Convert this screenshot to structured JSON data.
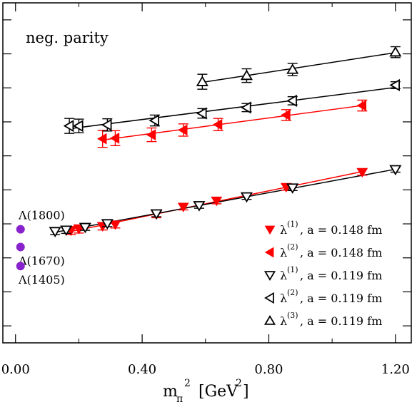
{
  "chart_data": {
    "type": "scatter",
    "title": "",
    "annotation": "neg. parity",
    "xlabel": {
      "main": "m",
      "sub": "π",
      "sup": "2",
      "unit": "[GeV",
      "unit_sup": "2",
      "unit_close": "]"
    },
    "ylabel": "",
    "xlim": [
      -0.04,
      1.25
    ],
    "ylim": [
      0,
      1
    ],
    "x_ticks": [
      0.0,
      0.4,
      0.8,
      1.2
    ],
    "x_tick_labels": [
      "0.00",
      "0.40",
      "0.80",
      "1.20"
    ],
    "y_major_ticks": [
      0.05,
      0.15,
      0.25,
      0.35,
      0.45,
      0.55,
      0.65,
      0.75,
      0.85,
      0.95
    ],
    "grid": false,
    "legend_position": "bottom-right",
    "colors": {
      "red": "#ff0000",
      "black": "#000000",
      "purple": "#8822cc"
    },
    "series": [
      {
        "name": "λ(1), a = 0.148 fm",
        "label_main": "λ",
        "label_sup": "(1)",
        "label_rest": ", a = 0.148 fm",
        "marker": "triangle-down",
        "filled": true,
        "color": "#ff0000",
        "fit_line": true,
        "points": [
          {
            "x": 0.175,
            "y": 0.33,
            "err": 0.012
          },
          {
            "x": 0.2,
            "y": 0.335,
            "err": 0.012
          },
          {
            "x": 0.275,
            "y": 0.343,
            "err": 0.011
          },
          {
            "x": 0.315,
            "y": 0.348,
            "err": 0.01
          },
          {
            "x": 0.445,
            "y": 0.378,
            "err": 0.01
          },
          {
            "x": 0.53,
            "y": 0.4,
            "err": 0.009
          },
          {
            "x": 0.635,
            "y": 0.418,
            "err": 0.009
          },
          {
            "x": 0.855,
            "y": 0.458,
            "err": 0.009
          },
          {
            "x": 1.095,
            "y": 0.502,
            "err": 0.009
          }
        ]
      },
      {
        "name": "λ(2), a = 0.148 fm",
        "label_main": "λ",
        "label_sup": "(2)",
        "label_rest": ", a = 0.148 fm",
        "marker": "triangle-left",
        "filled": true,
        "color": "#ff0000",
        "fit_line": true,
        "points": [
          {
            "x": 0.275,
            "y": 0.6,
            "err": 0.025
          },
          {
            "x": 0.315,
            "y": 0.602,
            "err": 0.022
          },
          {
            "x": 0.43,
            "y": 0.612,
            "err": 0.02
          },
          {
            "x": 0.53,
            "y": 0.626,
            "err": 0.018
          },
          {
            "x": 0.64,
            "y": 0.642,
            "err": 0.018
          },
          {
            "x": 0.855,
            "y": 0.67,
            "err": 0.016
          },
          {
            "x": 1.095,
            "y": 0.698,
            "err": 0.016
          }
        ]
      },
      {
        "name": "λ(1), a = 0.119 fm",
        "label_main": "λ",
        "label_sup": "(1)",
        "label_rest": ", a = 0.119 fm",
        "marker": "triangle-down",
        "filled": false,
        "color": "#000000",
        "fit_line": true,
        "points": [
          {
            "x": 0.125,
            "y": 0.328,
            "err": 0.01
          },
          {
            "x": 0.16,
            "y": 0.332,
            "err": 0.01
          },
          {
            "x": 0.22,
            "y": 0.34,
            "err": 0.009
          },
          {
            "x": 0.29,
            "y": 0.351,
            "err": 0.009
          },
          {
            "x": 0.445,
            "y": 0.38,
            "err": 0.009
          },
          {
            "x": 0.58,
            "y": 0.404,
            "err": 0.008
          },
          {
            "x": 0.73,
            "y": 0.43,
            "err": 0.008
          },
          {
            "x": 0.875,
            "y": 0.456,
            "err": 0.008
          },
          {
            "x": 1.2,
            "y": 0.51,
            "err": 0.008
          }
        ]
      },
      {
        "name": "λ(2), a = 0.119 fm",
        "label_main": "λ",
        "label_sup": "(2)",
        "label_rest": ", a = 0.119 fm",
        "marker": "triangle-left",
        "filled": false,
        "color": "#000000",
        "fit_line": true,
        "points": [
          {
            "x": 0.17,
            "y": 0.638,
            "err": 0.022
          },
          {
            "x": 0.2,
            "y": 0.638,
            "err": 0.02
          },
          {
            "x": 0.29,
            "y": 0.641,
            "err": 0.018
          },
          {
            "x": 0.44,
            "y": 0.654,
            "err": 0.016
          },
          {
            "x": 0.59,
            "y": 0.675,
            "err": 0.014
          },
          {
            "x": 0.73,
            "y": 0.692,
            "err": 0.012
          },
          {
            "x": 0.875,
            "y": 0.712,
            "err": 0.012
          },
          {
            "x": 1.2,
            "y": 0.758,
            "err": 0.01
          }
        ]
      },
      {
        "name": "λ(3), a = 0.119 fm",
        "label_main": "λ",
        "label_sup": "(3)",
        "label_rest": ", a = 0.119 fm",
        "marker": "triangle-up",
        "filled": false,
        "color": "#000000",
        "fit_line": true,
        "points": [
          {
            "x": 0.59,
            "y": 0.768,
            "err": 0.022
          },
          {
            "x": 0.73,
            "y": 0.786,
            "err": 0.02
          },
          {
            "x": 0.875,
            "y": 0.804,
            "err": 0.018
          },
          {
            "x": 1.2,
            "y": 0.855,
            "err": 0.016
          }
        ]
      }
    ],
    "experimental_states": [
      {
        "label": "Λ(1800)",
        "x": 0.0,
        "y": 0.334,
        "label_position": "above"
      },
      {
        "label": "Λ(1670)",
        "x": 0.0,
        "y": 0.282,
        "label_position": "below"
      },
      {
        "label": "Λ(1405)",
        "x": 0.0,
        "y": 0.226,
        "label_position": "below"
      }
    ]
  }
}
